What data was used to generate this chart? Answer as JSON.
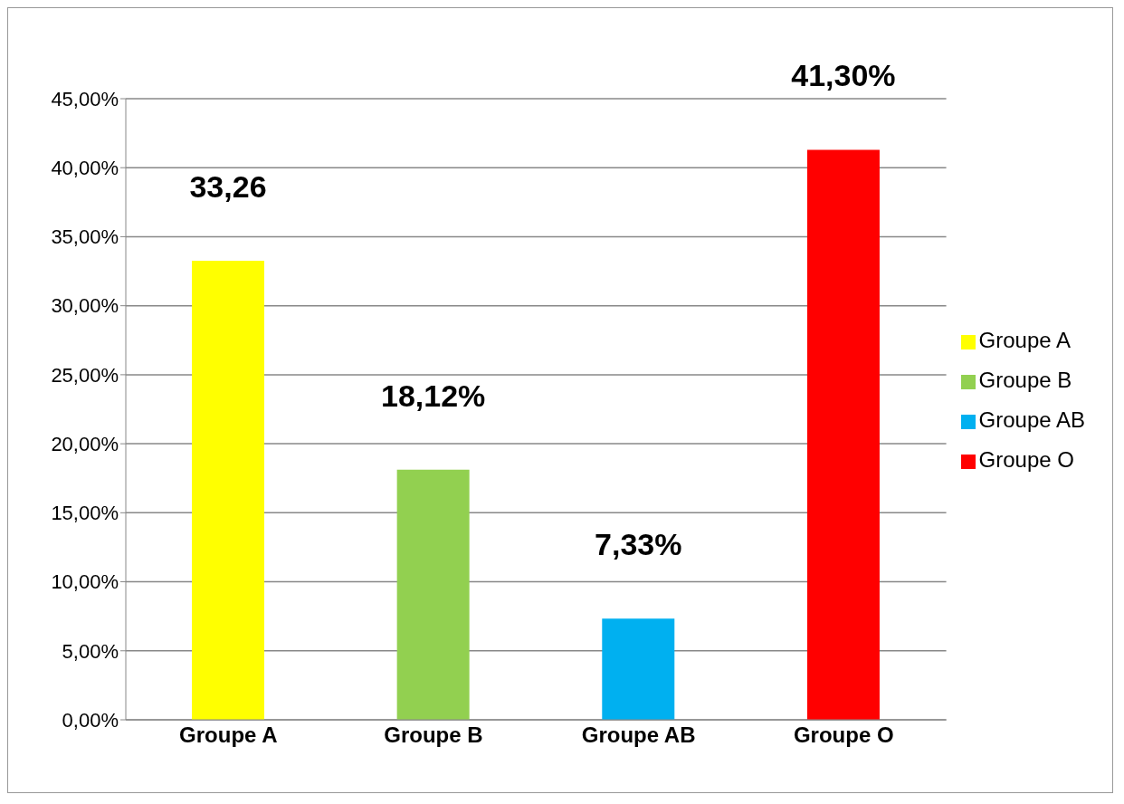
{
  "chart_data": {
    "type": "bar",
    "categories": [
      "Groupe A",
      "Groupe B",
      "Groupe AB",
      "Groupe O"
    ],
    "series": [
      {
        "name": "Groupe A",
        "color": "#ffff00",
        "values": [
          33.26,
          null,
          null,
          null
        ],
        "value_labels": [
          "33,26",
          null,
          null,
          null
        ]
      },
      {
        "name": "Groupe B",
        "color": "#92d050",
        "values": [
          null,
          18.12,
          null,
          null
        ],
        "value_labels": [
          null,
          "18,12%",
          null,
          null
        ]
      },
      {
        "name": "Groupe AB",
        "color": "#00b0f0",
        "values": [
          null,
          null,
          7.33,
          null
        ],
        "value_labels": [
          null,
          null,
          "7,33%",
          null
        ]
      },
      {
        "name": "Groupe O",
        "color": "#ff0000",
        "values": [
          null,
          null,
          null,
          41.3
        ],
        "value_labels": [
          null,
          null,
          null,
          "41,30%"
        ]
      }
    ],
    "stacked": true,
    "ylim": [
      0,
      45
    ],
    "yticks": [
      {
        "value": 0,
        "label": "0,00%"
      },
      {
        "value": 5,
        "label": "5,00%"
      },
      {
        "value": 10,
        "label": "10,00%"
      },
      {
        "value": 15,
        "label": "15,00%"
      },
      {
        "value": 20,
        "label": "20,00%"
      },
      {
        "value": 25,
        "label": "25,00%"
      },
      {
        "value": 30,
        "label": "30,00%"
      },
      {
        "value": 35,
        "label": "35,00%"
      },
      {
        "value": 40,
        "label": "40,00%"
      },
      {
        "value": 45,
        "label": "45,00%"
      }
    ],
    "grid": "y",
    "legend": "right"
  }
}
